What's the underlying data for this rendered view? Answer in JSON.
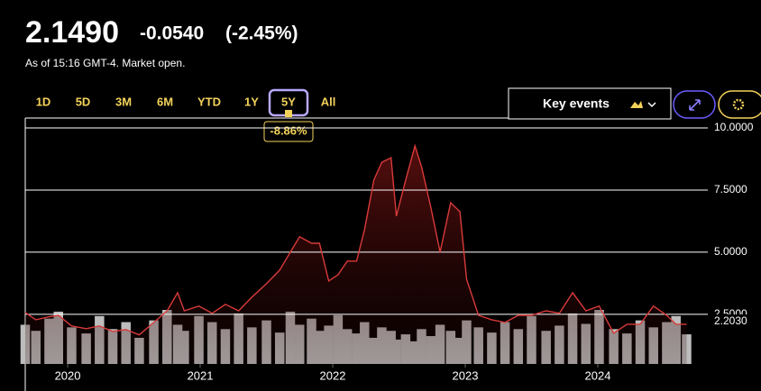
{
  "header": {
    "price": "2.1490",
    "change": "-0.0540",
    "change_pct": "(-2.45%)",
    "as_of": "As of 15:16 GMT-4. Market open."
  },
  "range_buttons": [
    "1D",
    "5D",
    "3M",
    "6M",
    "YTD",
    "1Y",
    "5Y",
    "All"
  ],
  "selected_range": 6,
  "range_change": "-8.86%",
  "key_events": "Key events",
  "chart_data": {
    "type": "line",
    "x": [
      2019.68,
      2019.76,
      2019.86,
      2019.93,
      2020.03,
      2020.14,
      2020.24,
      2020.34,
      2020.44,
      2020.54,
      2020.65,
      2020.75,
      2020.83,
      2020.88,
      2020.99,
      2021.09,
      2021.19,
      2021.29,
      2021.39,
      2021.5,
      2021.6,
      2021.68,
      2021.75,
      2021.84,
      2021.9,
      2021.97,
      2022.04,
      2022.11,
      2022.18,
      2022.24,
      2022.31,
      2022.37,
      2022.44,
      2022.48,
      2022.55,
      2022.62,
      2022.67,
      2022.74,
      2022.81,
      2022.89,
      2022.96,
      2023.01,
      2023.1,
      2023.2,
      2023.3,
      2023.4,
      2023.5,
      2023.61,
      2023.71,
      2023.81,
      2023.91,
      2024.01,
      2024.12,
      2024.22,
      2024.32,
      2024.42,
      2024.52,
      2024.59,
      2024.67
    ],
    "values": [
      2.57,
      2.28,
      2.4,
      2.46,
      2.03,
      1.92,
      2.03,
      1.81,
      1.88,
      1.67,
      2.17,
      2.64,
      3.37,
      2.64,
      2.83,
      2.54,
      2.9,
      2.64,
      3.19,
      3.73,
      4.28,
      5.0,
      5.62,
      5.36,
      5.36,
      3.84,
      4.09,
      4.64,
      4.64,
      5.91,
      7.9,
      8.62,
      8.8,
      6.45,
      7.9,
      9.28,
      8.44,
      6.81,
      5.0,
      6.99,
      6.63,
      3.91,
      2.46,
      2.28,
      2.17,
      2.46,
      2.46,
      2.64,
      2.54,
      3.37,
      2.64,
      2.83,
      1.74,
      2.1,
      2.1,
      2.83,
      2.46,
      2.1,
      2.1
    ],
    "volume": [
      45,
      38,
      52,
      60,
      42,
      35,
      55,
      40,
      48,
      30,
      50,
      62,
      45,
      38,
      55,
      48,
      40,
      58,
      42,
      50,
      36,
      60,
      45,
      52,
      38,
      44,
      56,
      40,
      35,
      48,
      30,
      42,
      38,
      28,
      34,
      26,
      40,
      32,
      45,
      38,
      30,
      50,
      42,
      36,
      48,
      40,
      55,
      38,
      44,
      58,
      46,
      62,
      40,
      35,
      50,
      42,
      48,
      55,
      34
    ],
    "color": "#d93a3a",
    "volume_color": "#bdbdbd",
    "xlim": [
      2019.68,
      2024.83
    ],
    "xticks": [
      2020,
      2021,
      2022,
      2023,
      2024
    ],
    "ylim": [
      0.5,
      10.4
    ],
    "yticks": [
      {
        "value": 2.5,
        "label": "2.5000"
      },
      {
        "value": 5,
        "label": "5.0000"
      },
      {
        "value": 7.5,
        "label": "7.5000"
      },
      {
        "value": 10,
        "label": "10.0000"
      }
    ],
    "price_marker": {
      "value": 2.203,
      "label": "2.2030"
    },
    "grid": true
  }
}
